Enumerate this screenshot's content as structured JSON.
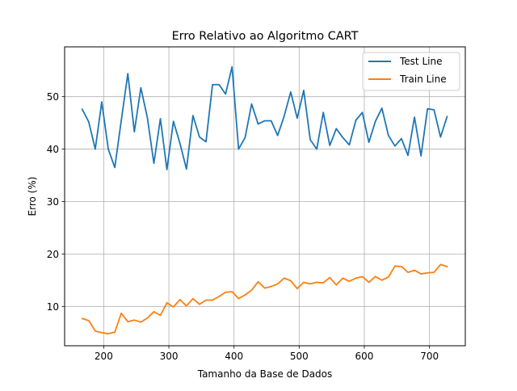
{
  "chart_data": {
    "type": "line",
    "title": "Erro Relativo ao Algoritmo CART",
    "xlabel": "Tamanho da Base de Dados",
    "ylabel": "Erro (%)",
    "xlim": [
      140,
      755
    ],
    "ylim": [
      2.5,
      59.5
    ],
    "xticks": [
      200,
      300,
      400,
      500,
      600,
      700
    ],
    "yticks": [
      10,
      20,
      30,
      40,
      50
    ],
    "grid": true,
    "legend_position": "top-right",
    "x": [
      167,
      177,
      187,
      197,
      207,
      217,
      227,
      237,
      247,
      257,
      267,
      277,
      287,
      297,
      307,
      317,
      327,
      337,
      347,
      357,
      367,
      377,
      387,
      397,
      407,
      417,
      427,
      437,
      447,
      457,
      467,
      477,
      487,
      497,
      507,
      517,
      527,
      537,
      547,
      557,
      567,
      577,
      587,
      597,
      607,
      617,
      627,
      637,
      647,
      657,
      667,
      677,
      687,
      697,
      707,
      717,
      727
    ],
    "series": [
      {
        "name": "Test Line",
        "color": "#1f77b4",
        "values": [
          47.6,
          45.2,
          40.0,
          49.0,
          40.0,
          36.5,
          45.5,
          54.4,
          43.3,
          51.7,
          46.0,
          37.3,
          45.8,
          36.1,
          45.3,
          41.1,
          36.2,
          46.4,
          42.3,
          41.4,
          52.3,
          52.3,
          50.5,
          55.7,
          40.0,
          42.2,
          48.6,
          44.8,
          45.4,
          45.4,
          42.6,
          46.3,
          50.9,
          45.9,
          51.2,
          41.8,
          40.0,
          47.0,
          40.7,
          43.9,
          42.2,
          40.8,
          45.5,
          47.0,
          41.3,
          45.3,
          47.8,
          42.6,
          40.6,
          42.0,
          38.8,
          46.1,
          38.7,
          47.7,
          47.5,
          42.3,
          46.2
        ]
      },
      {
        "name": "Train Line",
        "color": "#ff7f0e",
        "values": [
          7.7,
          7.3,
          5.3,
          5.0,
          4.8,
          5.1,
          8.7,
          7.1,
          7.4,
          7.0,
          7.8,
          9.0,
          8.3,
          10.7,
          9.9,
          11.3,
          10.1,
          11.5,
          10.4,
          11.2,
          11.2,
          11.9,
          12.7,
          12.8,
          11.5,
          12.2,
          13.1,
          14.7,
          13.5,
          13.8,
          14.3,
          15.4,
          14.9,
          13.4,
          14.6,
          14.3,
          14.6,
          14.5,
          15.5,
          14.1,
          15.4,
          14.8,
          15.4,
          15.7,
          14.6,
          15.7,
          15.0,
          15.6,
          17.7,
          17.6,
          16.5,
          16.9,
          16.2,
          16.4,
          16.5,
          18.0,
          17.6
        ]
      }
    ]
  }
}
